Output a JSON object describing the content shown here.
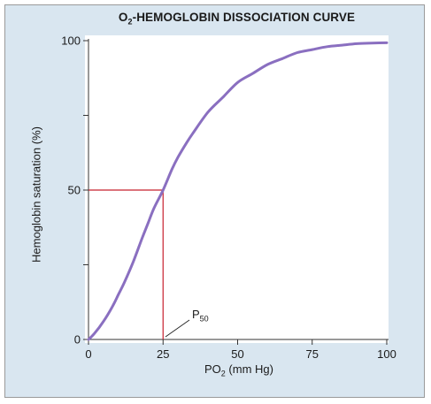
{
  "chart_data": {
    "type": "line",
    "title": {
      "prefix": "O",
      "sub": "2",
      "rest": "-HEMOGLOBIN DISSOCIATION CURVE"
    },
    "xlabel": {
      "prefix": "P",
      "mid": "O",
      "sub": "2",
      "rest": " (mm Hg)"
    },
    "ylabel": "Hemoglobin saturation (%)",
    "xlim": [
      0,
      100
    ],
    "ylim": [
      0,
      100
    ],
    "x_ticks": [
      0,
      25,
      50,
      75,
      100
    ],
    "x_tick_labels": [
      "0",
      "25",
      "50",
      "75",
      "100"
    ],
    "y_ticks": [
      0,
      25,
      50,
      75,
      100
    ],
    "y_tick_labels": [
      "0",
      "",
      "50",
      "",
      "100"
    ],
    "grid": false,
    "legend": "none",
    "series": [
      {
        "color": "#8a6fc0",
        "x": [
          0,
          2,
          5,
          8,
          10,
          12,
          15,
          18,
          20,
          22,
          25,
          28,
          30,
          33,
          35,
          40,
          45,
          50,
          55,
          60,
          65,
          70,
          75,
          80,
          85,
          90,
          95,
          100
        ],
        "y": [
          0,
          2,
          6,
          11,
          15,
          19,
          26,
          34,
          39,
          44,
          50,
          57,
          61,
          66,
          69,
          76,
          81,
          86,
          89,
          92,
          94,
          96,
          97,
          98,
          98.5,
          99,
          99.2,
          99.3
        ]
      }
    ],
    "p50_marker": {
      "x": 25,
      "y": 50,
      "color": "#c8202f",
      "label": {
        "prefix": "P",
        "sub": "50"
      }
    }
  }
}
